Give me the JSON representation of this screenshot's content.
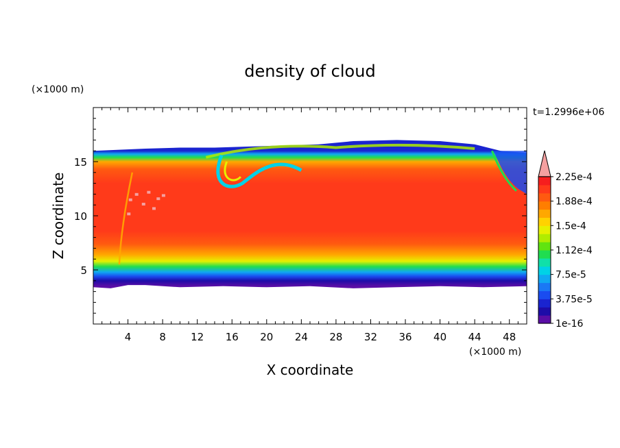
{
  "chart_data": {
    "type": "heatmap",
    "title": "density of cloud",
    "time_label": "t=1.2996e+06",
    "xlabel": "X coordinate",
    "ylabel": "Z coordinate",
    "x_unit": "(×1000 m)",
    "y_unit": "(×1000 m)",
    "xlim": [
      0,
      50
    ],
    "ylim": [
      0,
      20
    ],
    "x_ticks": [
      4,
      8,
      12,
      16,
      20,
      24,
      28,
      32,
      36,
      40,
      44,
      48
    ],
    "y_ticks": [
      5,
      10,
      15
    ],
    "colorbar": {
      "labels": [
        "1e-16",
        "3.75e-5",
        "7.5e-5",
        "1.12e-4",
        "1.5e-4",
        "1.88e-4",
        "2.25e-4"
      ],
      "colors": [
        "#5a0ea6",
        "#1e0ca8",
        "#1a24d0",
        "#1a4cf0",
        "#1a78f5",
        "#10a8f2",
        "#00d2e6",
        "#10e0a8",
        "#20dd50",
        "#60e410",
        "#b0ec00",
        "#e6f000",
        "#ffd200",
        "#ffa800",
        "#ff7e00",
        "#ff5a10",
        "#ff3a1a",
        "#f61e1e",
        "#f4a0a0"
      ],
      "extend_max": true,
      "max_color": "#f4a0a0"
    },
    "cloud_field": {
      "base_z": 3.5,
      "top_z": 16.0,
      "core_value_range": "2.25e-4 and above",
      "description_colors_by_z": [
        [
          3.5,
          "#5a0ea6"
        ],
        [
          4.0,
          "#1e0ca8"
        ],
        [
          4.4,
          "#1a4cf0"
        ],
        [
          4.8,
          "#10a8f2"
        ],
        [
          5.3,
          "#20dd50"
        ],
        [
          5.8,
          "#e6f000"
        ],
        [
          6.4,
          "#ffa800"
        ],
        [
          7.4,
          "#ff5a10"
        ],
        [
          8.6,
          "#ff3a1a"
        ],
        [
          13.0,
          "#ff3a1a"
        ],
        [
          14.3,
          "#ff5a10"
        ],
        [
          15.0,
          "#ffa800"
        ],
        [
          15.4,
          "#20dd50"
        ],
        [
          15.7,
          "#10a8f2"
        ],
        [
          16.0,
          "#1a24d0"
        ]
      ]
    }
  }
}
